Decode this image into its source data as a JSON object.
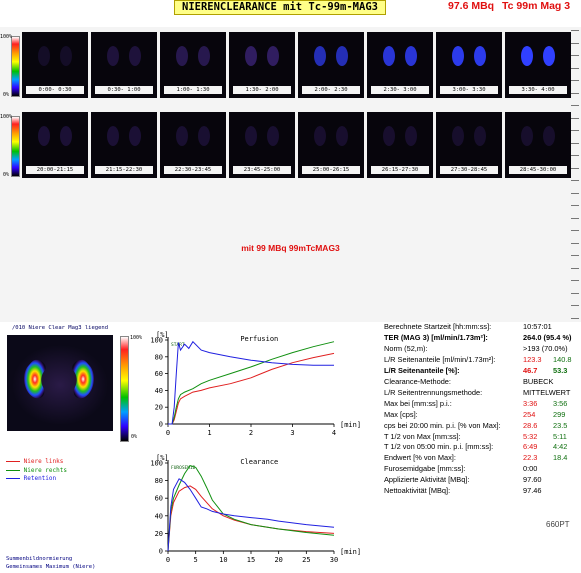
{
  "header": {
    "title": "NIERENCLEARANCE  mit  Tc-99m-MAG3",
    "activity": "97.6 MBq",
    "tracer": "Tc 99m Mag 3"
  },
  "scale": {
    "max_label": "100%",
    "min_label": "0%"
  },
  "frames_row1": [
    {
      "label": "0:00- 0:30",
      "intensity": 0.05
    },
    {
      "label": "0:30- 1:00",
      "intensity": 0.2
    },
    {
      "label": "1:00- 1:30",
      "intensity": 0.35
    },
    {
      "label": "1:30- 2:00",
      "intensity": 0.5
    },
    {
      "label": "2:00- 2:30",
      "intensity": 0.65
    },
    {
      "label": "2:30- 3:00",
      "intensity": 0.8
    },
    {
      "label": "3:00- 3:30",
      "intensity": 0.9
    },
    {
      "label": "3:30- 4:00",
      "intensity": 1.0
    }
  ],
  "frames_row2": [
    {
      "label": "20:00-21:15",
      "intensity": 0.15
    },
    {
      "label": "21:15-22:30",
      "intensity": 0.15
    },
    {
      "label": "22:30-23:45",
      "intensity": 0.12
    },
    {
      "label": "23:45-25:00",
      "intensity": 0.12
    },
    {
      "label": "25:00-26:15",
      "intensity": 0.1
    },
    {
      "label": "26:15-27:30",
      "intensity": 0.1
    },
    {
      "label": "27:30-28:45",
      "intensity": 0.08
    },
    {
      "label": "28:45-30:00",
      "intensity": 0.08
    }
  ],
  "middle_text": "mit 99 MBq 99mTcMAG3",
  "summary": {
    "top_label": "/010  Niere Clear Mag3 liegend",
    "scale_max": "100%",
    "scale_min": "0%",
    "footer_line1": "Summenbildnormierung",
    "footer_line2": "Gemeinsames Maximum (Niere)"
  },
  "legend": {
    "links": "Niere links",
    "rechts": "Niere rechts",
    "retention": "Retention",
    "color_links": "#e02020",
    "color_rechts": "#109010",
    "color_retention": "#2020e0"
  },
  "chart_data": [
    {
      "type": "line",
      "title": "Perfusion",
      "ylabel": "[%]",
      "xlabel": "[min]",
      "xlim": [
        0,
        4
      ],
      "ylim": [
        0,
        100
      ],
      "xticks": [
        "0",
        "1",
        "2",
        "3",
        "4"
      ],
      "yticks": [
        "0",
        "20",
        "40",
        "60",
        "80",
        "100"
      ],
      "start_marker": "START",
      "series": [
        {
          "name": "Niere links",
          "x": [
            0,
            0.1,
            0.15,
            0.2,
            0.25,
            0.3,
            0.4,
            0.6,
            0.8,
            1.0,
            1.5,
            2.0,
            2.5,
            3.0,
            3.5,
            4.0
          ],
          "y": [
            0,
            0,
            5,
            15,
            25,
            30,
            33,
            38,
            40,
            43,
            48,
            55,
            65,
            73,
            79,
            84
          ]
        },
        {
          "name": "Niere rechts",
          "x": [
            0,
            0.1,
            0.15,
            0.2,
            0.25,
            0.3,
            0.4,
            0.6,
            0.8,
            1.0,
            1.5,
            2.0,
            2.5,
            3.0,
            3.5,
            4.0
          ],
          "y": [
            0,
            0,
            8,
            20,
            30,
            35,
            38,
            42,
            48,
            52,
            60,
            68,
            77,
            85,
            92,
            98
          ]
        },
        {
          "name": "Retention",
          "x": [
            0,
            0.1,
            0.15,
            0.2,
            0.25,
            0.3,
            0.4,
            0.5,
            0.6,
            0.8,
            1.0,
            1.5,
            2.0,
            2.5,
            3.0,
            3.5,
            4.0
          ],
          "y": [
            0,
            0,
            20,
            60,
            97,
            88,
            95,
            90,
            98,
            88,
            85,
            80,
            76,
            73,
            71,
            70,
            70
          ]
        }
      ]
    },
    {
      "type": "line",
      "title": "Clearance",
      "ylabel": "[%]",
      "xlabel": "[min]",
      "xlim": [
        0,
        30
      ],
      "ylim": [
        0,
        100
      ],
      "xticks": [
        "0",
        "5",
        "10",
        "15",
        "20",
        "25",
        "30"
      ],
      "yticks": [
        "0",
        "20",
        "40",
        "60",
        "80",
        "100"
      ],
      "start_marker": "FUROSEMID",
      "series": [
        {
          "name": "Niere links",
          "x": [
            0,
            0.5,
            1,
            2,
            3,
            4,
            5,
            6,
            7,
            8,
            10,
            12,
            15,
            18,
            20,
            25,
            30
          ],
          "y": [
            0,
            40,
            55,
            68,
            72,
            74,
            70,
            62,
            55,
            48,
            40,
            35,
            30,
            27,
            25,
            22,
            20
          ]
        },
        {
          "name": "Niere rechts",
          "x": [
            0,
            0.5,
            1,
            2,
            3,
            4,
            5,
            6,
            7,
            8,
            10,
            12,
            15,
            18,
            20,
            25,
            30
          ],
          "y": [
            0,
            45,
            60,
            75,
            88,
            97,
            95,
            85,
            72,
            58,
            42,
            36,
            30,
            27,
            25,
            21,
            18
          ]
        },
        {
          "name": "Retention",
          "x": [
            0,
            0.5,
            1,
            2,
            3,
            4,
            5,
            6,
            7,
            8,
            10,
            12,
            15,
            18,
            20,
            25,
            30
          ],
          "y": [
            0,
            50,
            70,
            82,
            78,
            70,
            60,
            50,
            48,
            45,
            42,
            40,
            38,
            36,
            34,
            30,
            27
          ]
        }
      ]
    }
  ],
  "stats": [
    {
      "label": "Berechnete Startzeit [hh:mm:ss]:",
      "v1": "10:57:01",
      "v2": "",
      "bold": false,
      "c1": "",
      "c2": ""
    },
    {
      "label": "TER (MAG 3) [ml/min/1.73m²]:",
      "v1": "264.0 (95.4 %)",
      "v2": "",
      "bold": true,
      "c1": "",
      "c2": ""
    },
    {
      "label": "Norm (52,m):",
      "v1": ">193 (70.0%)",
      "v2": "",
      "bold": false,
      "c1": "",
      "c2": ""
    },
    {
      "label": "L/R Seitenanteile [ml/min/1.73m²]:",
      "v1": "123.3",
      "v2": "140.8",
      "bold": false,
      "c1": "red",
      "c2": "grn"
    },
    {
      "label": "L/R Seitenanteile [%]:",
      "v1": "46.7",
      "v2": "53.3",
      "bold": true,
      "c1": "red",
      "c2": "grn"
    },
    {
      "label": "Clearance-Methode:",
      "v1": "BUBECK",
      "v2": "",
      "bold": false,
      "c1": "",
      "c2": ""
    },
    {
      "label": "L/R Seitentrennungsmethode:",
      "v1": "MITTELWERT",
      "v2": "",
      "bold": false,
      "c1": "",
      "c2": ""
    },
    {
      "label": "Max bei [mm:ss] p.i.:",
      "v1": "3:36",
      "v2": "3:56",
      "bold": false,
      "c1": "red",
      "c2": "grn"
    },
    {
      "label": "Max [cps]:",
      "v1": "254",
      "v2": "299",
      "bold": false,
      "c1": "red",
      "c2": "grn"
    },
    {
      "label": "cps bei 20:00 min. p.i. [% von Max]:",
      "v1": "28.6",
      "v2": "23.5",
      "bold": false,
      "c1": "red",
      "c2": "grn"
    },
    {
      "label": "T 1/2 von Max [mm:ss]:",
      "v1": "5:32",
      "v2": "5:11",
      "bold": false,
      "c1": "red",
      "c2": "grn"
    },
    {
      "label": "T 1/2 von 05:00 min. p.i. [mm:ss]:",
      "v1": "6:49",
      "v2": "4:42",
      "bold": false,
      "c1": "red",
      "c2": "grn"
    },
    {
      "label": "Endwert [% von Max]:",
      "v1": "22.3",
      "v2": "18.4",
      "bold": false,
      "c1": "red",
      "c2": "grn"
    },
    {
      "label": "Furosemidgabe [mm:ss]:",
      "v1": "0:00",
      "v2": "",
      "bold": false,
      "c1": "",
      "c2": ""
    },
    {
      "label": "Applizierte Aktivität [MBq]:",
      "v1": "97.60",
      "v2": "",
      "bold": false,
      "c1": "",
      "c2": ""
    },
    {
      "label": "Nettoaktivität [MBq]:",
      "v1": "97.46",
      "v2": "",
      "bold": false,
      "c1": "",
      "c2": ""
    }
  ],
  "watermark": "660PT"
}
